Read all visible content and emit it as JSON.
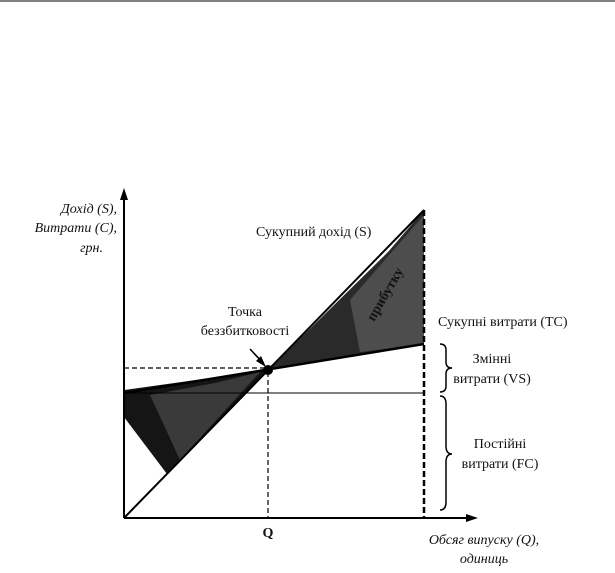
{
  "diagram": {
    "y_axis_label": [
      "Дохід (S),",
      "Витрати (С),",
      "грн."
    ],
    "x_axis_label": [
      "Обсяг випуску (Q),",
      "одиниць"
    ],
    "breakeven_label": [
      "Точка",
      "беззбитковості"
    ],
    "q_label": "Q",
    "revenue_label": "Сукупний дохід (S)",
    "total_cost_label": "Сукупні витрати (ТС)",
    "variable_cost_label": [
      "Змінні",
      "витрати (VS)"
    ],
    "fixed_cost_label": [
      "Постійні",
      "витрати (FC)"
    ],
    "profit_zone_label": "прибутку",
    "colors": {
      "loss_zone": "#151515",
      "profit_zone": "#3a3a3a",
      "line": "#000000"
    }
  }
}
